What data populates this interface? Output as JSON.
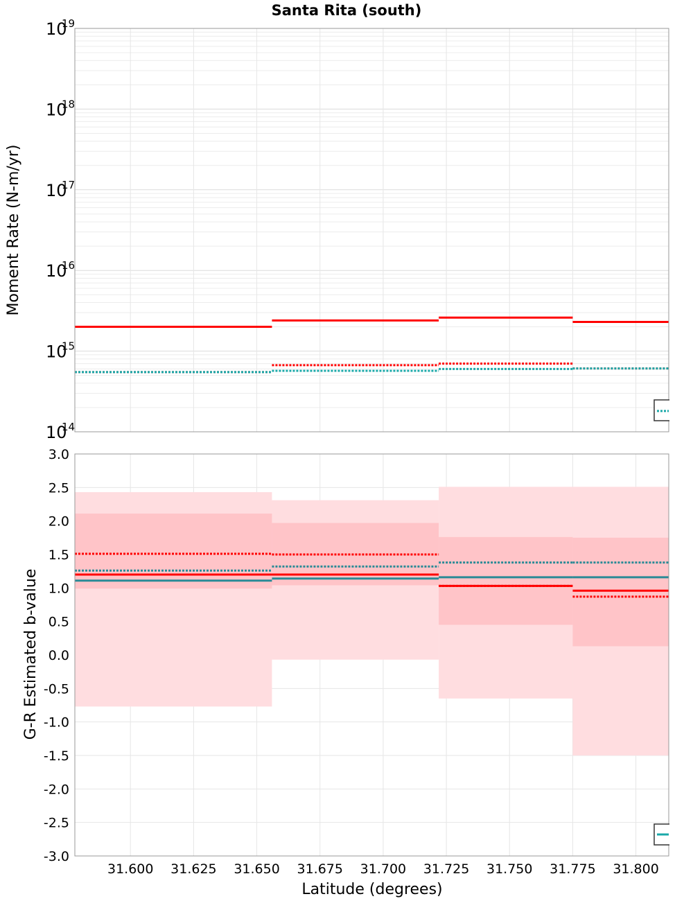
{
  "chart_data": [
    {
      "type": "line",
      "title": "Santa Rita (south)",
      "xlabel": "",
      "ylabel": "Moment Rate (N-m/yr)",
      "yscale": "log",
      "ylim": [
        100000000000000.0,
        1e+19
      ],
      "xlim": [
        31.578,
        31.813
      ],
      "grid": true,
      "y_ticks": [
        {
          "base": "10",
          "exp": "14"
        },
        {
          "base": "10",
          "exp": "15"
        },
        {
          "base": "10",
          "exp": "16"
        },
        {
          "base": "10",
          "exp": "17"
        },
        {
          "base": "10",
          "exp": "18"
        },
        {
          "base": "10",
          "exp": "19"
        }
      ],
      "legend": "bottom-right",
      "bin_edges": [
        31.578,
        31.656,
        31.722,
        31.775,
        31.813
      ],
      "series": [
        {
          "color": "#ff0000",
          "dash": "solid",
          "values": [
            2000000000000000.0,
            2400000000000000.0,
            2600000000000000.0,
            2300000000000000.0
          ]
        },
        {
          "color": "#ff0000",
          "dash": "dotted",
          "values": [
            550000000000000.0,
            670000000000000.0,
            700000000000000.0,
            610000000000000.0
          ]
        },
        {
          "color": "#1aa8a8",
          "dash": "dotted",
          "values": [
            550000000000000.0,
            570000000000000.0,
            600000000000000.0,
            610000000000000.0
          ]
        }
      ]
    },
    {
      "type": "line",
      "xlabel": "Latitude (degrees)",
      "ylabel": "G-R Estimated b-value",
      "ylim": [
        -3.0,
        3.0
      ],
      "xlim": [
        31.578,
        31.813
      ],
      "grid": true,
      "x_ticks": [
        "31.600",
        "31.625",
        "31.650",
        "31.675",
        "31.700",
        "31.725",
        "31.750",
        "31.775",
        "31.800"
      ],
      "y_ticks": [
        "3.0",
        "2.5",
        "2.0",
        "1.5",
        "1.0",
        "0.5",
        "0.0",
        "-0.5",
        "-1.0",
        "-1.5",
        "-2.0",
        "-2.5",
        "-3.0"
      ],
      "legend": "bottom-right",
      "bin_edges": [
        31.578,
        31.656,
        31.722,
        31.775,
        31.813
      ],
      "bands": [
        {
          "color": "#ffdde0",
          "lower": [
            -0.77,
            -0.07,
            -0.65,
            -1.5
          ],
          "upper": [
            2.43,
            2.31,
            2.51,
            2.51
          ]
        },
        {
          "color": "#ffc4c8",
          "lower": [
            0.99,
            1.04,
            0.45,
            0.13
          ],
          "upper": [
            2.11,
            1.97,
            1.76,
            1.75
          ]
        }
      ],
      "series": [
        {
          "color": "#ff0000",
          "dash": "solid",
          "values": [
            1.2,
            1.2,
            1.03,
            0.96
          ]
        },
        {
          "color": "#ff0000",
          "dash": "dotted",
          "values": [
            1.51,
            1.5,
            1.03,
            0.87
          ]
        },
        {
          "color": "#2a8a96",
          "dash": "solid",
          "values": [
            1.11,
            1.14,
            1.16,
            1.16
          ]
        },
        {
          "color": "#2a8a96",
          "dash": "dotted",
          "values": [
            1.26,
            1.32,
            1.38,
            1.38
          ]
        }
      ]
    }
  ],
  "legend_colors": {
    "teal": "#1aa8a8",
    "box": "#333333"
  }
}
